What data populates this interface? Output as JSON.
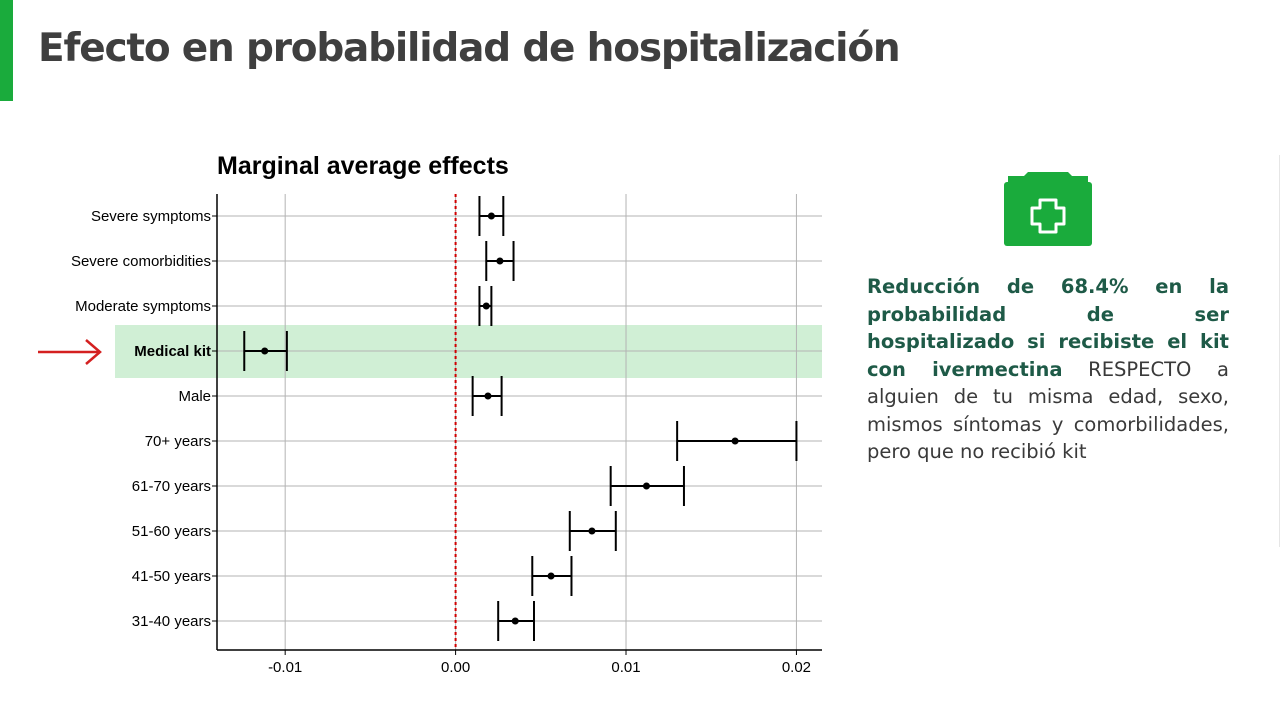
{
  "slide": {
    "title": "Efecto en probabilidad de hospitalización",
    "accent_color": "#1aab3c"
  },
  "chart_data": {
    "type": "errorbar",
    "title": "Marginal average effects",
    "xlabel": "",
    "ylabel": "",
    "xlim": [
      -0.014,
      0.0215
    ],
    "xticks": [
      -0.01,
      0.0,
      0.01,
      0.02
    ],
    "xtick_labels": [
      "-0.01",
      "0.00",
      "0.01",
      "0.02"
    ],
    "grid": true,
    "reference_line": {
      "x": 0.0,
      "color": "#d00000",
      "style": "dotted"
    },
    "highlighted_category": "Medical kit",
    "highlight_color": "#d0efd5",
    "categories": [
      "Severe symptoms",
      "Severe comorbidities",
      "Moderate symptoms",
      "Medical kit",
      "Male",
      "70+ years",
      "61-70 years",
      "51-60 years",
      "41-50 years",
      "31-40 years"
    ],
    "estimates": [
      0.0021,
      0.0026,
      0.0018,
      -0.0112,
      0.0019,
      0.0164,
      0.0112,
      0.008,
      0.0056,
      0.0035
    ],
    "ci_low": [
      0.0014,
      0.0018,
      0.0014,
      -0.0124,
      0.001,
      0.013,
      0.0091,
      0.0067,
      0.0045,
      0.0025
    ],
    "ci_high": [
      0.0028,
      0.0034,
      0.0021,
      -0.0099,
      0.0027,
      0.02,
      0.0134,
      0.0094,
      0.0068,
      0.0046
    ]
  },
  "icons": {
    "medical_kit": "medical-kit-icon",
    "pointer": "red-arrow-icon",
    "icon_color": "#1aab3c",
    "arrow_color": "#d42020"
  },
  "findings": {
    "highlight": "Reducción de 68.4% en la probabilidad de ser hospitalizado si recibiste el kit con ivermectina",
    "body": " RESPECTO a alguien de tu misma edad, sexo, mismos síntomas y comorbilidades, pero que no recibió kit"
  }
}
